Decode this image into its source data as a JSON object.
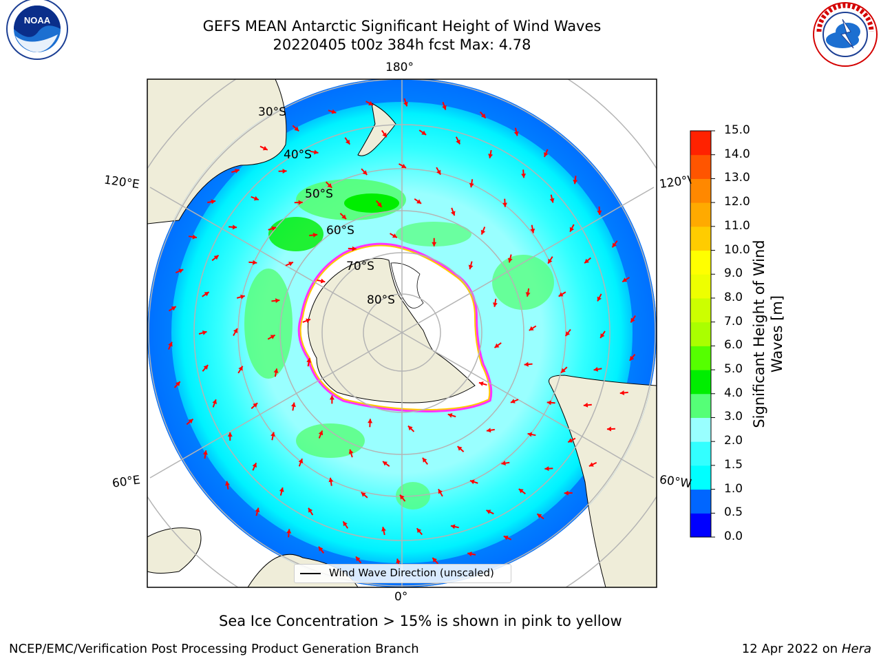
{
  "title": {
    "line1": "GEFS MEAN Antarctic Significant Height of Wind Waves",
    "line2": "20220405 t00z 384h fcst   Max: 4.78"
  },
  "logos": {
    "left": "noaa-logo",
    "right": "nws-logo",
    "left_text": "NOAA",
    "left_ring": "NATIONAL OCEANIC AND ATMOSPHERIC ADMINISTRATION · U.S. DEPARTMENT OF COMMERCE",
    "right_ring": "NATIONAL WEATHER SERVICE"
  },
  "map": {
    "projection": "south-polar-stereographic",
    "longitude_labels": {
      "top": "180°",
      "bottom": "0°",
      "upper_left": "120°E",
      "upper_right": "120°W",
      "lower_left": "60°E",
      "lower_right": "60°W"
    },
    "latitude_labels": [
      "30°S",
      "40°S",
      "50°S",
      "60°S",
      "70°S",
      "80°S"
    ],
    "colors": {
      "land": "#efedd9",
      "ice_shelf": "#ffffff",
      "sea_ice_edge": "#ff33ff",
      "graticule": "#b4b4b4",
      "arrows": "#ff0000"
    }
  },
  "legend": {
    "wind_wave_direction": "Wind Wave Direction (unscaled)"
  },
  "colorbar": {
    "title": "Significant Height of Wind Waves [m]",
    "ticks": [
      "0.0",
      "0.5",
      "1.0",
      "1.5",
      "2.0",
      "3.0",
      "4.0",
      "5.0",
      "6.0",
      "7.0",
      "8.0",
      "9.0",
      "10.0",
      "11.0",
      "12.0",
      "13.0",
      "14.0",
      "15.0"
    ],
    "colors": [
      "#0000ff",
      "#0066ff",
      "#00ffff",
      "#33ffff",
      "#99ffff",
      "#55ff77",
      "#00ee00",
      "#55ff00",
      "#aaff00",
      "#ccff00",
      "#eeff00",
      "#ffff00",
      "#ffcc00",
      "#ffaa00",
      "#ff8800",
      "#ff5500",
      "#ff2200"
    ]
  },
  "note": "Sea Ice Concentration > 15% is shown in pink to yellow",
  "footer": {
    "left": "NCEP/EMC/Verification Post Processing Product Generation Branch",
    "right_date": "12 Apr 2022 on ",
    "right_host": "Hera"
  }
}
